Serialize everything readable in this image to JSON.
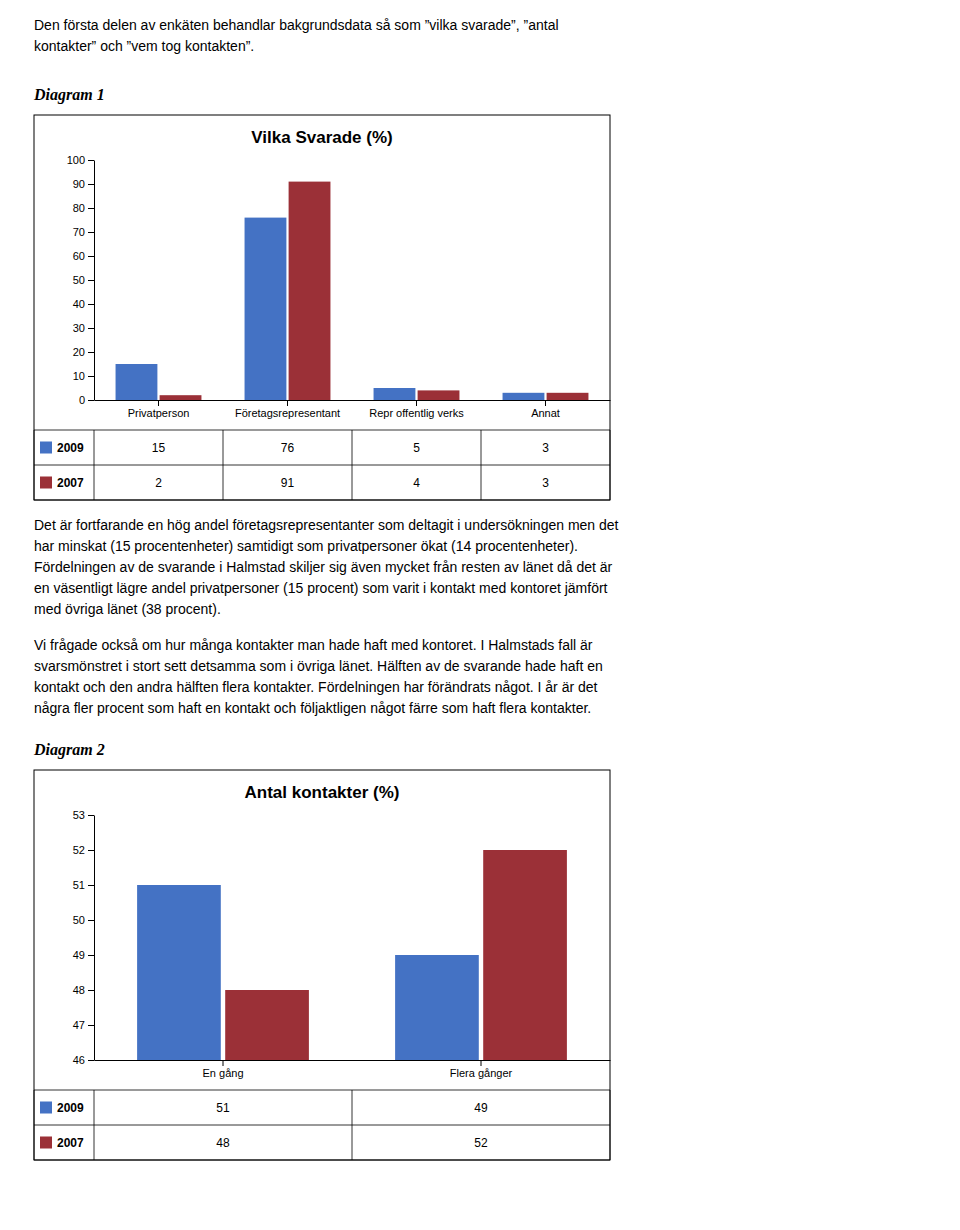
{
  "intro_text": [
    "Den första delen av enkäten behandlar bakgrundsdata så som ”vilka svarade”, ”antal",
    "kontakter” och ”vem tog kontakten”."
  ],
  "diagram_labels": [
    "Diagram 1",
    "Diagram 2"
  ],
  "mid_text": [
    "Det är fortfarande en hög andel företagsrepresentanter som deltagit i undersökningen men det",
    "har minskat (15 procentenheter) samtidigt som privatpersoner ökat (14 procentenheter).",
    "Fördelningen av de svarande i Halmstad skiljer sig även mycket från resten av länet då det är",
    "en väsentligt lägre andel privatpersoner (15 procent) som varit i kontakt med kontoret jämfört",
    "med övriga länet (38 procent)."
  ],
  "bottom_text": [
    "Vi frågade också om hur många kontakter man hade haft med kontoret. I Halmstads fall är",
    "svarsmönstret i stort sett detsamma som i övriga länet. Hälften av de svarande hade haft en",
    "kontakt och den andra hälften flera kontakter. Fördelningen har förändrats något. I år är det",
    "några fler procent som haft en kontakt och följaktligen något färre som haft flera kontakter."
  ],
  "chart_data": [
    {
      "type": "bar",
      "title": "Vilka Svarade (%)",
      "categories": [
        "Privatperson",
        "Företagsrepresentant",
        "Repr offentlig verks",
        "Annat"
      ],
      "series": [
        {
          "name": "2009",
          "color": "#4472C4",
          "values": [
            15,
            76,
            5,
            3
          ]
        },
        {
          "name": "2007",
          "color": "#9B3037",
          "values": [
            2,
            91,
            4,
            3
          ]
        }
      ],
      "ylim": [
        0,
        100
      ],
      "yticks": [
        0,
        10,
        20,
        30,
        40,
        50,
        60,
        70,
        80,
        90,
        100
      ],
      "grid": false,
      "legend": "bottom"
    },
    {
      "type": "bar",
      "title": "Antal kontakter (%)",
      "categories": [
        "En gång",
        "Flera gånger"
      ],
      "series": [
        {
          "name": "2009",
          "color": "#4472C4",
          "values": [
            51,
            49
          ]
        },
        {
          "name": "2007",
          "color": "#9B3037",
          "values": [
            48,
            52
          ]
        }
      ],
      "ylim": [
        46,
        53
      ],
      "yticks": [
        46,
        47,
        48,
        49,
        50,
        51,
        52,
        53
      ],
      "grid": false,
      "legend": "bottom"
    }
  ]
}
